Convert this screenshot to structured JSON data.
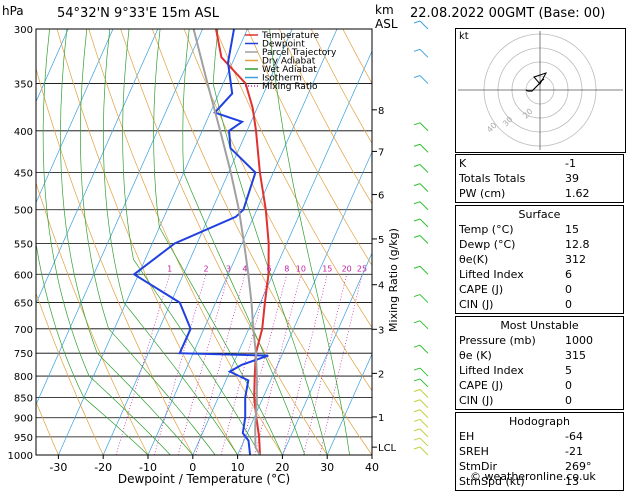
{
  "header": {
    "location": "54°32'N  9°33'E  15m  ASL",
    "datetime": "22.08.2022  00GMT  (Base: 00)",
    "hpa_label": "hPa",
    "km_label": "km",
    "asl_label": "ASL"
  },
  "chart_data": {
    "type": "line",
    "title": "",
    "xlabel": "Dewpoint / Temperature (°C)",
    "ylabel": "hPa",
    "right_axis_label": "Mixing Ratio (g/kg)",
    "xlim": [
      -35,
      40
    ],
    "ylim": [
      1000,
      300
    ],
    "y_scale": "log",
    "x_ticks": [
      -30,
      -20,
      -10,
      0,
      10,
      20,
      30,
      40
    ],
    "pressure_ticks": [
      300,
      350,
      400,
      450,
      500,
      550,
      600,
      650,
      700,
      750,
      800,
      850,
      900,
      950,
      1000
    ],
    "km_ticks": [
      {
        "p": 377,
        "label": "8"
      },
      {
        "p": 424,
        "label": "7"
      },
      {
        "p": 479,
        "label": "6"
      },
      {
        "p": 543,
        "label": "5"
      },
      {
        "p": 618,
        "label": "4"
      },
      {
        "p": 701,
        "label": "3"
      },
      {
        "p": 794,
        "label": "2"
      },
      {
        "p": 898,
        "label": "1"
      },
      {
        "p": 978,
        "label": "LCL"
      }
    ],
    "mixing_ratio_labels": [
      "1",
      "2",
      "3",
      "4",
      "6",
      "8",
      "10",
      "15",
      "20",
      "25"
    ],
    "legend": [
      "Temperature",
      "Dewpoint",
      "Parcel Trajectory",
      "Dry Adiabat",
      "Wet Adiabat",
      "Isotherm",
      "Mixing Ratio"
    ],
    "legend_position": "top-left",
    "series": [
      {
        "name": "Temperature",
        "color": "#e03030",
        "points": [
          [
            15,
            1000
          ],
          [
            13,
            950
          ],
          [
            10.5,
            900
          ],
          [
            8,
            850
          ],
          [
            6,
            800
          ],
          [
            4,
            750
          ],
          [
            3,
            700
          ],
          [
            1,
            650
          ],
          [
            -1,
            600
          ],
          [
            -4,
            550
          ],
          [
            -8,
            500
          ],
          [
            -13,
            450
          ],
          [
            -18,
            400
          ],
          [
            -21,
            375
          ],
          [
            -25,
            350
          ],
          [
            -33,
            325
          ],
          [
            -37,
            300
          ]
        ]
      },
      {
        "name": "Dewpoint",
        "color": "#2040e0",
        "points": [
          [
            12.8,
            1000
          ],
          [
            11,
            960
          ],
          [
            9,
            940
          ],
          [
            8,
            900
          ],
          [
            6,
            850
          ],
          [
            5,
            810
          ],
          [
            0,
            790
          ],
          [
            2,
            775
          ],
          [
            7,
            755
          ],
          [
            -13,
            750
          ],
          [
            -13,
            700
          ],
          [
            -18,
            650
          ],
          [
            -31,
            600
          ],
          [
            -25,
            550
          ],
          [
            -14,
            510
          ],
          [
            -13,
            500
          ],
          [
            -14,
            450
          ],
          [
            -22,
            420
          ],
          [
            -24,
            400
          ],
          [
            -22,
            390
          ],
          [
            -29,
            380
          ],
          [
            -27,
            360
          ],
          [
            -31,
            330
          ],
          [
            -33,
            300
          ]
        ]
      },
      {
        "name": "Parcel Trajectory",
        "color": "#a0a0a0",
        "points": [
          [
            15,
            1000
          ],
          [
            13.2,
            978
          ],
          [
            11,
            920
          ],
          [
            9,
            860
          ],
          [
            6.5,
            800
          ],
          [
            4,
            750
          ],
          [
            1,
            700
          ],
          [
            -2,
            650
          ],
          [
            -5.5,
            600
          ],
          [
            -9.5,
            550
          ],
          [
            -14,
            500
          ],
          [
            -19.5,
            450
          ],
          [
            -26,
            400
          ],
          [
            -33.5,
            350
          ],
          [
            -42,
            300
          ]
        ]
      }
    ],
    "wind_barb_color": "#3aa0e0"
  },
  "hodograph": {
    "label": "kt",
    "ring_labels": [
      "10",
      "20",
      "30",
      "40"
    ]
  },
  "indices": {
    "k": {
      "label": "K",
      "value": "-1"
    },
    "totals": {
      "label": "Totals Totals",
      "value": "39"
    },
    "pw": {
      "label": "PW (cm)",
      "value": "1.62"
    },
    "surface": {
      "title": "Surface",
      "temp": {
        "label": "Temp (°C)",
        "value": "15"
      },
      "dewp": {
        "label": "Dewp (°C)",
        "value": "12.8"
      },
      "theta": {
        "label": "θe(K)",
        "value": "312"
      },
      "li": {
        "label": "Lifted Index",
        "value": "6"
      },
      "cape": {
        "label": "CAPE (J)",
        "value": "0"
      },
      "cin": {
        "label": "CIN (J)",
        "value": "0"
      }
    },
    "mu": {
      "title": "Most Unstable",
      "pressure": {
        "label": "Pressure (mb)",
        "value": "1000"
      },
      "theta": {
        "label": "θe (K)",
        "value": "315"
      },
      "li": {
        "label": "Lifted Index",
        "value": "5"
      },
      "cape": {
        "label": "CAPE (J)",
        "value": "0"
      },
      "cin": {
        "label": "CIN (J)",
        "value": "0"
      }
    },
    "hodo": {
      "title": "Hodograph",
      "eh": {
        "label": "EH",
        "value": "-64"
      },
      "sreh": {
        "label": "SREH",
        "value": "-21"
      },
      "stmdir": {
        "label": "StmDir",
        "value": "269°"
      },
      "stmspd": {
        "label": "StmSpd (kt)",
        "value": "13"
      }
    }
  },
  "credit": "© weatheronline.co.uk"
}
